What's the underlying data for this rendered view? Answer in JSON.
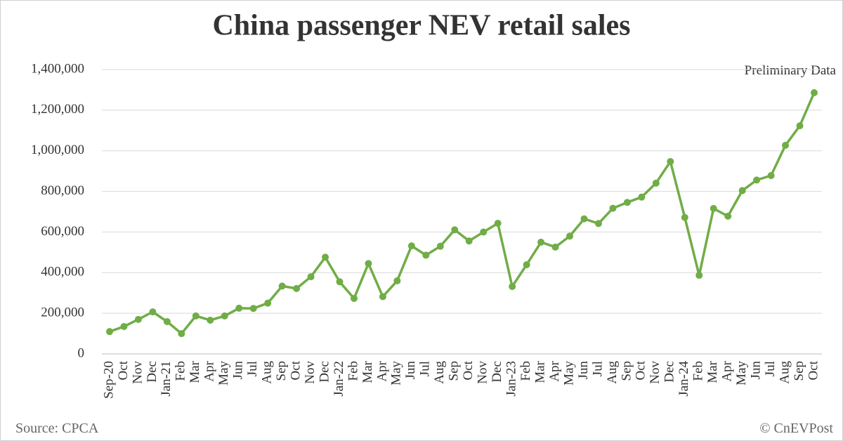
{
  "chart_data": {
    "type": "line",
    "title": "China passenger NEV retail sales",
    "categories": [
      "Sep-20",
      "Oct",
      "Nov",
      "Dec",
      "Jan-21",
      "Feb",
      "Mar",
      "Apr",
      "May",
      "Jun",
      "Jul",
      "Aug",
      "Sep",
      "Oct",
      "Nov",
      "Dec",
      "Jan-22",
      "Feb",
      "Mar",
      "Apr",
      "May",
      "Jun",
      "Jul",
      "Aug",
      "Sep",
      "Oct",
      "Nov",
      "Dec",
      "Jan-23",
      "Feb",
      "Mar",
      "Apr",
      "May",
      "Jun",
      "Jul",
      "Aug",
      "Sep",
      "Oct",
      "Nov",
      "Dec",
      "Jan-24",
      "Feb",
      "Mar",
      "Apr",
      "May",
      "Jun",
      "Jul",
      "Aug",
      "Sep",
      "Oct"
    ],
    "series": [
      {
        "name": "NEV retail sales",
        "color": "#70ad47",
        "values": [
          110000,
          135000,
          170000,
          207000,
          159000,
          100000,
          187000,
          166000,
          187000,
          225000,
          224000,
          250000,
          334000,
          322000,
          380000,
          476000,
          355000,
          273000,
          445000,
          282000,
          360000,
          532000,
          486000,
          530000,
          611000,
          556000,
          600000,
          643000,
          332000,
          439000,
          550000,
          526000,
          580000,
          665000,
          642000,
          717000,
          746000,
          772000,
          841000,
          947000,
          672000,
          387000,
          716000,
          678000,
          804000,
          856000,
          878000,
          1027000,
          1123000,
          1286000
        ]
      }
    ],
    "ylim": [
      0,
      1400000
    ],
    "yticks": [
      0,
      {
        "value": 200000,
        "label": "200,000"
      },
      {
        "value": 400000,
        "label": "400,000"
      },
      {
        "value": 600000,
        "label": "600,000"
      },
      {
        "value": 800000,
        "label": "800,000"
      },
      {
        "value": 1000000,
        "label": "1,000,000"
      },
      {
        "value": 1200000,
        "label": "1,200,000"
      },
      {
        "value": 1400000,
        "label": "1,400,000"
      }
    ],
    "grid": true,
    "annotations": [
      "Preliminary Data",
      "Source: CPCA",
      "© CnEVPost"
    ]
  }
}
